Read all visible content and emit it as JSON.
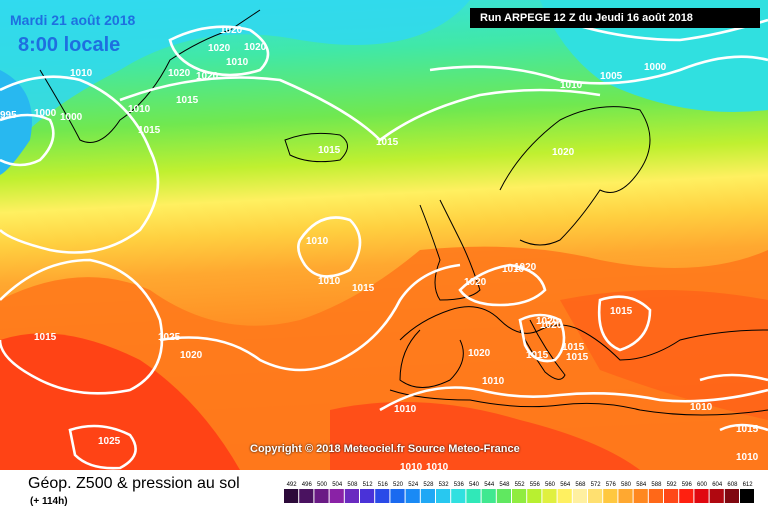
{
  "header": {
    "date": "Mardi 21 août 2018",
    "local_time": "8:00 locale",
    "run": "Run ARPEGE 12 Z du Jeudi 16 août 2018"
  },
  "footer": {
    "product": "Géop. Z500 & pression au sol",
    "lead": "(+ 114h)",
    "copyright": "Copyright © 2018 Meteociel.fr Source Meteo-France"
  },
  "scale": {
    "values": [
      "492",
      "496",
      "500",
      "504",
      "508",
      "512",
      "516",
      "520",
      "524",
      "528",
      "532",
      "536",
      "540",
      "544",
      "548",
      "552",
      "556",
      "560",
      "564",
      "568",
      "572",
      "576",
      "580",
      "584",
      "588",
      "592",
      "596",
      "600",
      "604",
      "608",
      "612"
    ],
    "colors": [
      "#2c0a3a",
      "#4a1260",
      "#6a1a85",
      "#8a22a6",
      "#6a2ac0",
      "#4a32d8",
      "#2a4ae8",
      "#1a6af0",
      "#1a8af5",
      "#20a8f5",
      "#28c8f0",
      "#30e0e0",
      "#30e8b8",
      "#40e890",
      "#60e860",
      "#90ec40",
      "#b8f030",
      "#e0f040",
      "#fff060",
      "#fff0a0",
      "#ffe070",
      "#ffc840",
      "#ffa830",
      "#ff8820",
      "#ff6818",
      "#ff4818",
      "#ff2010",
      "#e00810",
      "#b00810",
      "#800810",
      "#000000"
    ]
  },
  "isobars": [
    "1020",
    "1020",
    "1020",
    "1020",
    "1020",
    "1010",
    "1010",
    "1000",
    "995",
    "1000",
    "1015",
    "1010",
    "1015",
    "1015",
    "1015",
    "1010",
    "1005",
    "1000",
    "1020",
    "1010",
    "1010",
    "1015",
    "1010",
    "1020",
    "1020",
    "1020",
    "1015",
    "1025",
    "1015",
    "1020",
    "1015",
    "1015",
    "1015",
    "1010",
    "1020",
    "1020",
    "1025",
    "1010",
    "1015",
    "1010",
    "1010",
    "1010",
    "1010"
  ]
}
